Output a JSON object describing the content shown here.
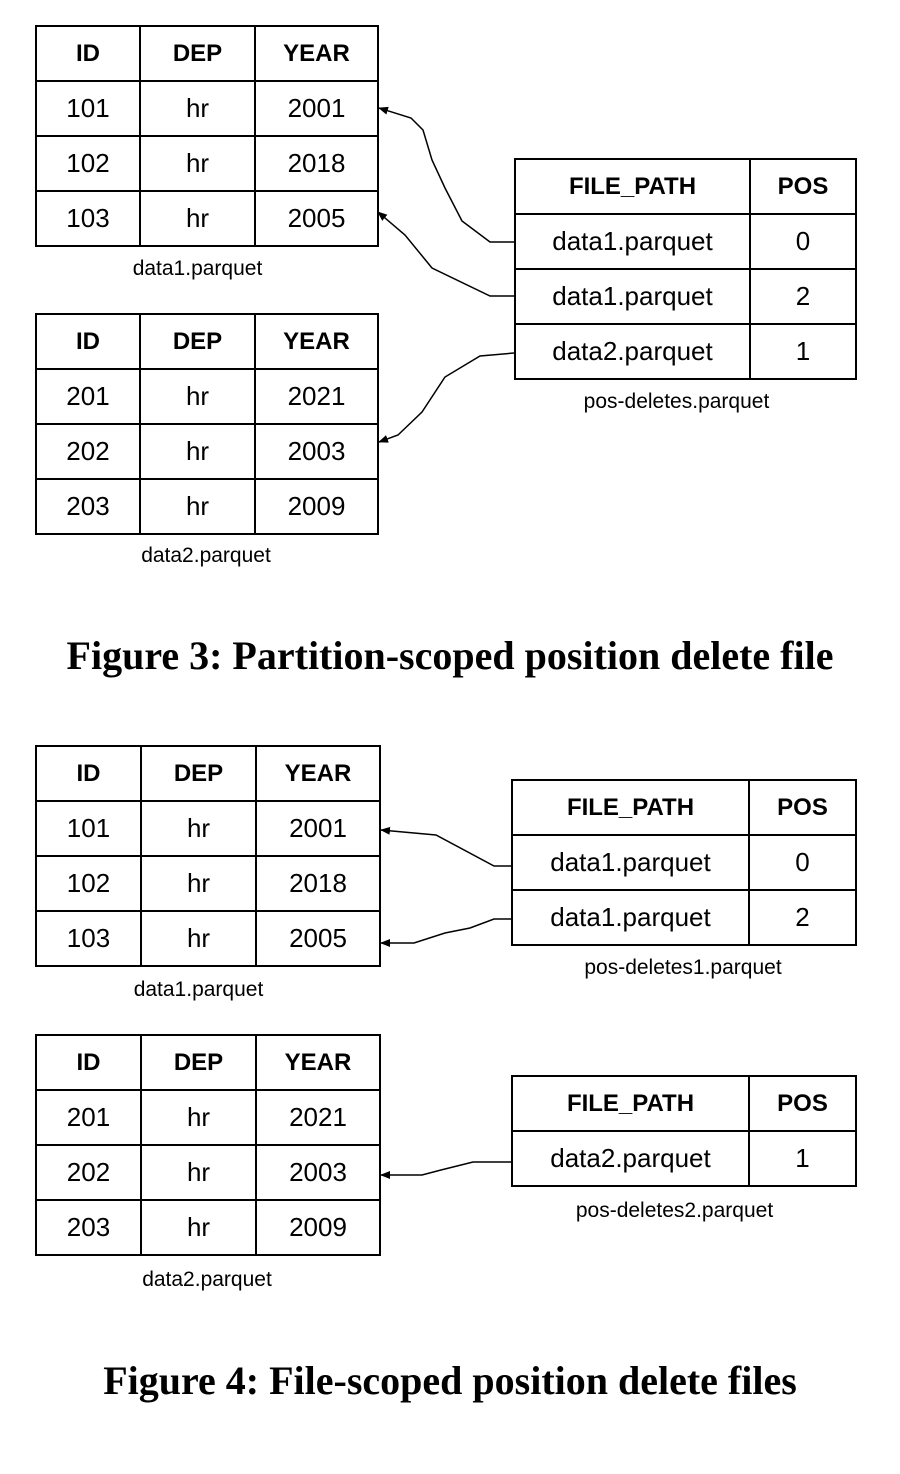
{
  "figure3": {
    "data1": {
      "caption": "data1.parquet",
      "headers": [
        "ID",
        "DEP",
        "YEAR"
      ],
      "rows": [
        [
          "101",
          "hr",
          "2001"
        ],
        [
          "102",
          "hr",
          "2018"
        ],
        [
          "103",
          "hr",
          "2005"
        ]
      ]
    },
    "data2": {
      "caption": "data2.parquet",
      "headers": [
        "ID",
        "DEP",
        "YEAR"
      ],
      "rows": [
        [
          "201",
          "hr",
          "2021"
        ],
        [
          "202",
          "hr",
          "2003"
        ],
        [
          "203",
          "hr",
          "2009"
        ]
      ]
    },
    "deletes": {
      "caption": "pos-deletes.parquet",
      "headers": [
        "FILE_PATH",
        "POS"
      ],
      "rows": [
        [
          "data1.parquet",
          "0"
        ],
        [
          "data1.parquet",
          "2"
        ],
        [
          "data2.parquet",
          "1"
        ]
      ]
    },
    "title": "Figure 3: Partition-scoped position delete file"
  },
  "figure4": {
    "data1": {
      "caption": "data1.parquet",
      "headers": [
        "ID",
        "DEP",
        "YEAR"
      ],
      "rows": [
        [
          "101",
          "hr",
          "2001"
        ],
        [
          "102",
          "hr",
          "2018"
        ],
        [
          "103",
          "hr",
          "2005"
        ]
      ]
    },
    "data2": {
      "caption": "data2.parquet",
      "headers": [
        "ID",
        "DEP",
        "YEAR"
      ],
      "rows": [
        [
          "201",
          "hr",
          "2021"
        ],
        [
          "202",
          "hr",
          "2003"
        ],
        [
          "203",
          "hr",
          "2009"
        ]
      ]
    },
    "deletes1": {
      "caption": "pos-deletes1.parquet",
      "headers": [
        "FILE_PATH",
        "POS"
      ],
      "rows": [
        [
          "data1.parquet",
          "0"
        ],
        [
          "data1.parquet",
          "2"
        ]
      ]
    },
    "deletes2": {
      "caption": "pos-deletes2.parquet",
      "headers": [
        "FILE_PATH",
        "POS"
      ],
      "rows": [
        [
          "data2.parquet",
          "1"
        ]
      ]
    },
    "title": "Figure 4: File-scoped position delete files"
  }
}
